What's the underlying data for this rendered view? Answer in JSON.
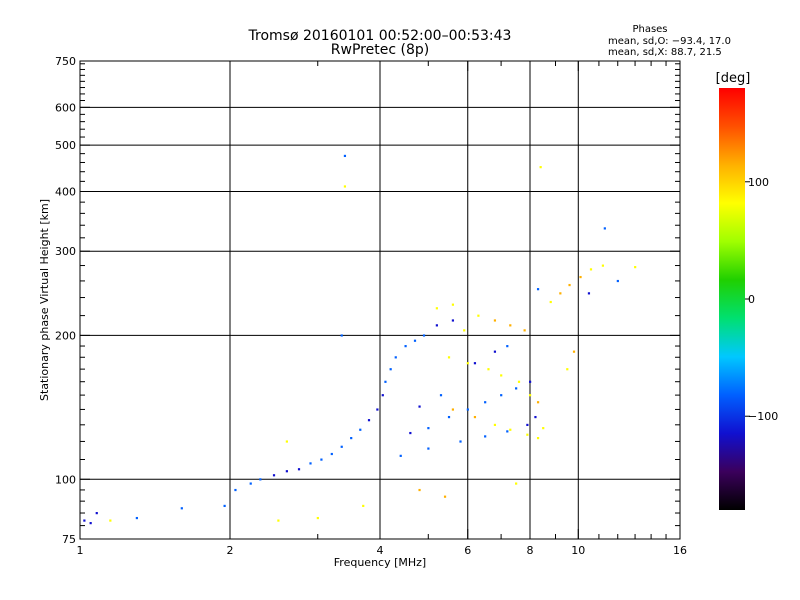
{
  "chart_data": {
    "type": "scatter",
    "title": "Tromsø 20160101 00:52:00–00:53:43",
    "subtitle": "RwPretec (8p)",
    "xlabel": "Frequency [MHz]",
    "ylabel": "Stationary phase Virtual Height [km]",
    "x_scale": "log",
    "y_scale": "log",
    "xlim": [
      1,
      16
    ],
    "ylim": [
      75,
      750
    ],
    "x_ticks": [
      1,
      2,
      4,
      6,
      8,
      10,
      16
    ],
    "x_tick_labels": [
      "1",
      "2",
      "4",
      "6",
      "8",
      "10",
      "16"
    ],
    "y_ticks": [
      75,
      100,
      200,
      300,
      400,
      500,
      600,
      750
    ],
    "y_tick_labels": [
      "75",
      "100",
      "200",
      "300",
      "400",
      "500",
      "600",
      "750"
    ],
    "x_minor_ticks": [
      3,
      5,
      7,
      9,
      11,
      12,
      13,
      14,
      15
    ],
    "y_minor_ticks": [
      80,
      85,
      90,
      95,
      110,
      120,
      130,
      140,
      150,
      160,
      170,
      180,
      190,
      220,
      240,
      260,
      280,
      320,
      340,
      360,
      380,
      420,
      440,
      460,
      480,
      520,
      540,
      560,
      580,
      620,
      640,
      660,
      680,
      700,
      720,
      740
    ],
    "grid": true,
    "grid_x": [
      2,
      4,
      6,
      8,
      10
    ],
    "grid_y": [
      100,
      200,
      300,
      400,
      500,
      600
    ],
    "colorbar": {
      "label": "[deg]",
      "range": [
        -180,
        180
      ],
      "ticks": [
        100,
        0,
        -100
      ],
      "tick_labels": [
        "100",
        "0",
        "−100"
      ],
      "colors": [
        "#000000",
        "#3b005c",
        "#1010d0",
        "#0060ff",
        "#00c8ff",
        "#00e070",
        "#20d000",
        "#a0ff00",
        "#ffff00",
        "#ffb000",
        "#ff5000",
        "#ff0000"
      ]
    },
    "stats": {
      "header": "Phases",
      "lines": [
        "mean, sd,O: −93.4, 17.0",
        "mean, sd,X:  88.7, 21.5"
      ]
    },
    "series": [
      {
        "name": "O",
        "phase_mean": -93.4,
        "phase_sd": 17.0,
        "points": [
          [
            1.02,
            82
          ],
          [
            1.05,
            81
          ],
          [
            1.08,
            85
          ],
          [
            1.3,
            83
          ],
          [
            1.6,
            87
          ],
          [
            1.95,
            88
          ],
          [
            2.05,
            95
          ],
          [
            2.2,
            98
          ],
          [
            2.3,
            100
          ],
          [
            2.45,
            102
          ],
          [
            2.6,
            104
          ],
          [
            2.75,
            105
          ],
          [
            2.9,
            108
          ],
          [
            3.05,
            110
          ],
          [
            3.2,
            113
          ],
          [
            3.35,
            117
          ],
          [
            3.5,
            122
          ],
          [
            3.65,
            127
          ],
          [
            3.8,
            133
          ],
          [
            3.95,
            140
          ],
          [
            4.05,
            150
          ],
          [
            4.1,
            160
          ],
          [
            4.2,
            170
          ],
          [
            4.3,
            180
          ],
          [
            4.5,
            190
          ],
          [
            4.7,
            195
          ],
          [
            4.9,
            200
          ],
          [
            5.2,
            210
          ],
          [
            5.6,
            215
          ],
          [
            4.6,
            125
          ],
          [
            5.0,
            128
          ],
          [
            5.5,
            135
          ],
          [
            6.0,
            140
          ],
          [
            6.5,
            145
          ],
          [
            7.0,
            150
          ],
          [
            7.5,
            155
          ],
          [
            8.0,
            160
          ],
          [
            6.2,
            175
          ],
          [
            6.8,
            185
          ],
          [
            7.2,
            190
          ],
          [
            4.4,
            112
          ],
          [
            5.0,
            116
          ],
          [
            5.8,
            120
          ],
          [
            6.5,
            123
          ],
          [
            7.2,
            126
          ],
          [
            7.9,
            130
          ],
          [
            8.2,
            135
          ],
          [
            4.8,
            142
          ],
          [
            5.3,
            150
          ],
          [
            3.4,
            475
          ],
          [
            3.35,
            200
          ],
          [
            12.0,
            260
          ],
          [
            11.3,
            335
          ],
          [
            8.3,
            250
          ],
          [
            10.5,
            245
          ]
        ]
      },
      {
        "name": "X",
        "phase_mean": 88.7,
        "phase_sd": 21.5,
        "points": [
          [
            5.2,
            228
          ],
          [
            5.6,
            232
          ],
          [
            5.9,
            205
          ],
          [
            6.3,
            220
          ],
          [
            6.8,
            215
          ],
          [
            7.3,
            210
          ],
          [
            7.8,
            205
          ],
          [
            5.5,
            180
          ],
          [
            6.0,
            175
          ],
          [
            6.6,
            170
          ],
          [
            7.0,
            165
          ],
          [
            7.6,
            160
          ],
          [
            8.0,
            150
          ],
          [
            8.3,
            145
          ],
          [
            5.6,
            140
          ],
          [
            6.2,
            135
          ],
          [
            6.8,
            130
          ],
          [
            7.3,
            127
          ],
          [
            7.9,
            124
          ],
          [
            8.3,
            122
          ],
          [
            8.5,
            128
          ],
          [
            8.8,
            235
          ],
          [
            9.2,
            245
          ],
          [
            9.6,
            255
          ],
          [
            10.1,
            265
          ],
          [
            10.6,
            275
          ],
          [
            11.2,
            280
          ],
          [
            13.0,
            278
          ],
          [
            8.4,
            450
          ],
          [
            3.4,
            410
          ],
          [
            9.5,
            170
          ],
          [
            9.8,
            185
          ],
          [
            4.8,
            95
          ],
          [
            5.4,
            92
          ],
          [
            7.5,
            98
          ],
          [
            2.5,
            82
          ],
          [
            3.0,
            83
          ],
          [
            3.7,
            88
          ],
          [
            2.6,
            120
          ],
          [
            1.15,
            82
          ]
        ]
      }
    ]
  }
}
